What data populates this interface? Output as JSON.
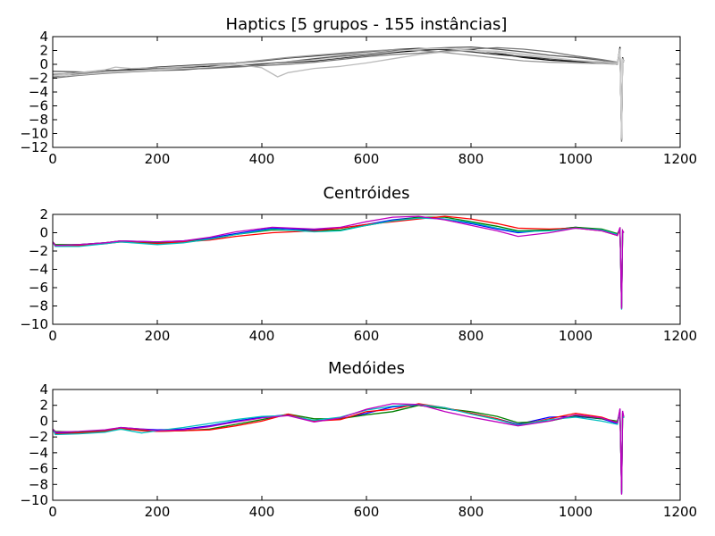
{
  "chart_data": [
    {
      "type": "line",
      "title": "Haptics [5 grupos - 155 instâncias]",
      "xlabel": "",
      "ylabel": "",
      "xlim": [
        0,
        1200
      ],
      "ylim": [
        -12,
        4
      ],
      "xticks": [
        0,
        200,
        400,
        600,
        800,
        1000,
        1200
      ],
      "yticks": [
        4,
        2,
        0,
        -2,
        -4,
        -6,
        -8,
        -10,
        -12
      ],
      "grid": false,
      "series_style": "many overlapping time series in black and shades of grey",
      "colors": [
        "#000000",
        "#333333",
        "#555555",
        "#777777",
        "#999999",
        "#bbbbbb",
        "#cccccc"
      ],
      "series": [
        {
          "x": [
            0,
            50,
            100,
            150,
            200,
            250,
            300,
            350,
            400,
            450,
            500,
            550,
            600,
            650,
            700,
            750,
            800,
            850,
            900,
            950,
            1000,
            1050,
            1080,
            1085,
            1088,
            1090,
            1092
          ],
          "values": [
            -1.5,
            -1.2,
            -0.9,
            -0.8,
            -0.6,
            -0.5,
            -0.3,
            -0.2,
            0.1,
            0.3,
            0.5,
            0.9,
            1.3,
            1.7,
            2.0,
            2.2,
            2.1,
            1.6,
            1.0,
            0.6,
            0.4,
            0.2,
            0.0,
            2.5,
            -11.0,
            1.0,
            0.5
          ]
        },
        {
          "x": [
            0,
            50,
            100,
            150,
            200,
            250,
            300,
            350,
            400,
            450,
            500,
            550,
            600,
            650,
            700,
            750,
            800,
            850,
            900,
            950,
            1000,
            1050,
            1080,
            1085,
            1088,
            1090,
            1092
          ],
          "values": [
            -1.8,
            -1.4,
            -1.0,
            -0.7,
            -0.4,
            -0.2,
            0.0,
            0.2,
            0.5,
            0.9,
            1.2,
            1.5,
            1.8,
            2.1,
            2.3,
            2.1,
            1.8,
            1.4,
            1.1,
            0.8,
            0.5,
            0.3,
            0.1,
            2.0,
            -10.5,
            0.8,
            0.4
          ]
        },
        {
          "x": [
            0,
            50,
            100,
            150,
            200,
            250,
            300,
            350,
            400,
            450,
            500,
            550,
            600,
            650,
            700,
            750,
            800,
            850,
            900,
            950,
            1000,
            1050,
            1080,
            1085,
            1088,
            1090,
            1092
          ],
          "values": [
            -1.0,
            -1.1,
            -1.2,
            -1.0,
            -0.9,
            -0.8,
            -0.5,
            -0.3,
            0.0,
            0.4,
            0.8,
            1.2,
            1.5,
            1.9,
            2.2,
            2.4,
            2.5,
            2.2,
            1.8,
            1.3,
            1.0,
            0.6,
            0.2,
            1.8,
            -10.8,
            0.6,
            0.3
          ]
        },
        {
          "x": [
            0,
            50,
            100,
            150,
            200,
            250,
            300,
            350,
            400,
            450,
            500,
            550,
            600,
            650,
            700,
            750,
            800,
            850,
            900,
            950,
            1000,
            1050,
            1080,
            1085,
            1088,
            1090,
            1092
          ],
          "values": [
            -2.0,
            -1.6,
            -1.3,
            -1.1,
            -0.9,
            -0.7,
            -0.6,
            -0.4,
            -0.2,
            0.0,
            0.3,
            0.7,
            1.1,
            1.4,
            1.6,
            1.9,
            2.2,
            2.4,
            2.2,
            1.8,
            1.2,
            0.7,
            0.3,
            2.2,
            -11.2,
            0.9,
            0.5
          ]
        },
        {
          "x": [
            0,
            50,
            100,
            150,
            200,
            250,
            300,
            350,
            400,
            450,
            500,
            550,
            600,
            650,
            700,
            750,
            800,
            850,
            900,
            950,
            1000,
            1050,
            1080,
            1085,
            1088,
            1090,
            1092
          ],
          "values": [
            -1.4,
            -1.3,
            -1.0,
            -0.9,
            -0.7,
            -0.4,
            -0.1,
            0.2,
            0.6,
            1.0,
            1.3,
            1.6,
            1.9,
            2.1,
            2.0,
            1.7,
            1.3,
            0.9,
            0.5,
            0.3,
            0.2,
            0.1,
            0.0,
            1.5,
            -10.2,
            0.7,
            0.3
          ]
        },
        {
          "x": [
            0,
            50,
            100,
            120,
            150,
            200,
            250,
            300,
            350,
            400,
            430,
            450,
            500,
            550,
            600,
            650,
            700,
            750,
            800,
            850,
            900,
            950,
            1000,
            1050,
            1080,
            1085,
            1088,
            1090,
            1092
          ],
          "values": [
            -1.6,
            -1.2,
            -0.8,
            -0.4,
            -0.6,
            -0.5,
            -0.3,
            -0.1,
            0.0,
            -0.5,
            -1.8,
            -1.2,
            -0.6,
            -0.3,
            0.2,
            0.8,
            1.4,
            1.8,
            2.0,
            1.9,
            1.5,
            1.0,
            0.6,
            0.2,
            0.0,
            2.3,
            -10.9,
            0.8,
            0.4
          ]
        },
        {
          "x": [
            0,
            50,
            100,
            150,
            200,
            250,
            300,
            350,
            400,
            450,
            500,
            550,
            600,
            650,
            700,
            750,
            800,
            850,
            900,
            950,
            1000,
            1050,
            1080,
            1085,
            1088,
            1090,
            1092
          ],
          "values": [
            -1.7,
            -1.5,
            -1.2,
            -1.0,
            -0.8,
            -0.6,
            -0.4,
            -0.1,
            0.2,
            0.4,
            0.6,
            1.0,
            1.4,
            1.8,
            2.2,
            2.3,
            2.0,
            1.7,
            1.3,
            0.9,
            0.6,
            0.4,
            0.2,
            2.0,
            -10.6,
            0.8,
            0.4
          ]
        }
      ]
    },
    {
      "type": "line",
      "title": "Centróides",
      "xlabel": "",
      "ylabel": "",
      "xlim": [
        0,
        1200
      ],
      "ylim": [
        -10,
        2
      ],
      "xticks": [
        0,
        200,
        400,
        600,
        800,
        1000,
        1200
      ],
      "yticks": [
        2,
        0,
        -2,
        -4,
        -6,
        -8,
        -10
      ],
      "grid": false,
      "series": [
        {
          "color": "#0000ff",
          "x": [
            0,
            5,
            50,
            100,
            130,
            200,
            250,
            300,
            350,
            420,
            500,
            550,
            600,
            650,
            700,
            750,
            800,
            850,
            890,
            950,
            1000,
            1050,
            1080,
            1085,
            1088,
            1090,
            1092
          ],
          "values": [
            -1.0,
            -1.4,
            -1.3,
            -1.1,
            -0.9,
            -1.0,
            -0.9,
            -0.6,
            -0.1,
            0.5,
            0.3,
            0.5,
            0.9,
            1.4,
            1.7,
            1.5,
            1.0,
            0.4,
            0.0,
            0.3,
            0.6,
            0.3,
            -0.3,
            0.5,
            -8.2,
            0.2,
            0.0
          ]
        },
        {
          "color": "#008000",
          "x": [
            0,
            5,
            50,
            100,
            130,
            200,
            250,
            300,
            350,
            420,
            500,
            550,
            600,
            650,
            700,
            750,
            800,
            850,
            890,
            950,
            1000,
            1050,
            1080,
            1085,
            1088,
            1090,
            1092
          ],
          "values": [
            -1.0,
            -1.3,
            -1.3,
            -1.1,
            -0.9,
            -1.1,
            -1.0,
            -0.7,
            -0.2,
            0.3,
            0.2,
            0.3,
            0.8,
            1.3,
            1.7,
            1.7,
            1.2,
            0.7,
            0.2,
            0.3,
            0.6,
            0.4,
            -0.1,
            0.4,
            -8.3,
            0.1,
            0.0
          ]
        },
        {
          "color": "#ff0000",
          "x": [
            0,
            5,
            50,
            100,
            130,
            200,
            250,
            300,
            350,
            420,
            500,
            550,
            600,
            650,
            700,
            750,
            800,
            850,
            890,
            950,
            1000,
            1050,
            1080,
            1085,
            1088,
            1090,
            1092
          ],
          "values": [
            -1.0,
            -1.4,
            -1.4,
            -1.2,
            -1.0,
            -1.2,
            -1.0,
            -0.8,
            -0.4,
            0.0,
            0.2,
            0.5,
            0.9,
            1.2,
            1.5,
            1.8,
            1.5,
            1.0,
            0.5,
            0.4,
            0.5,
            0.2,
            -0.3,
            0.3,
            -8.1,
            0.2,
            0.0
          ]
        },
        {
          "color": "#00bfbf",
          "x": [
            0,
            5,
            50,
            100,
            130,
            200,
            250,
            300,
            350,
            420,
            500,
            550,
            600,
            650,
            700,
            750,
            800,
            850,
            890,
            950,
            1000,
            1050,
            1080,
            1085,
            1088,
            1090,
            1092
          ],
          "values": [
            -1.0,
            -1.5,
            -1.5,
            -1.2,
            -1.0,
            -1.3,
            -1.1,
            -0.7,
            -0.2,
            0.4,
            0.1,
            0.2,
            0.8,
            1.3,
            1.6,
            1.5,
            1.1,
            0.5,
            0.1,
            0.2,
            0.5,
            0.3,
            -0.2,
            0.4,
            -8.4,
            0.1,
            0.0
          ]
        },
        {
          "color": "#bf00bf",
          "x": [
            0,
            5,
            50,
            100,
            130,
            200,
            250,
            300,
            350,
            420,
            500,
            550,
            600,
            650,
            700,
            750,
            800,
            850,
            890,
            950,
            1000,
            1050,
            1080,
            1085,
            1088,
            1090,
            1092
          ],
          "values": [
            -1.0,
            -1.4,
            -1.3,
            -1.1,
            -0.9,
            -1.0,
            -0.9,
            -0.5,
            0.1,
            0.6,
            0.4,
            0.6,
            1.2,
            1.7,
            1.8,
            1.4,
            0.8,
            0.2,
            -0.4,
            0.0,
            0.5,
            0.2,
            -0.3,
            0.6,
            -8.3,
            0.2,
            0.0
          ]
        }
      ]
    },
    {
      "type": "line",
      "title": "Medóides",
      "xlabel": "",
      "ylabel": "",
      "xlim": [
        0,
        1200
      ],
      "ylim": [
        -10,
        4
      ],
      "xticks": [
        0,
        200,
        400,
        600,
        800,
        1000,
        1200
      ],
      "yticks": [
        4,
        2,
        0,
        -2,
        -4,
        -6,
        -8,
        -10
      ],
      "grid": false,
      "series": [
        {
          "color": "#0000ff",
          "x": [
            0,
            5,
            50,
            100,
            130,
            170,
            200,
            250,
            300,
            350,
            400,
            450,
            500,
            550,
            600,
            650,
            700,
            750,
            800,
            850,
            890,
            950,
            1000,
            1050,
            1080,
            1085,
            1088,
            1090,
            1092
          ],
          "values": [
            -1.0,
            -1.5,
            -1.4,
            -1.2,
            -0.8,
            -1.0,
            -1.1,
            -1.0,
            -0.6,
            0.0,
            0.5,
            0.8,
            0.0,
            0.3,
            1.0,
            1.8,
            2.0,
            1.6,
            1.0,
            0.3,
            -0.4,
            0.5,
            0.6,
            0.3,
            -0.3,
            1.5,
            -9.2,
            1.2,
            0.5
          ]
        },
        {
          "color": "#008000",
          "x": [
            0,
            5,
            50,
            100,
            130,
            170,
            200,
            250,
            300,
            350,
            400,
            450,
            500,
            550,
            600,
            650,
            700,
            750,
            800,
            850,
            890,
            950,
            1000,
            1050,
            1080,
            1085,
            1088,
            1090,
            1092
          ],
          "values": [
            -1.0,
            -1.3,
            -1.4,
            -1.2,
            -1.0,
            -1.1,
            -1.3,
            -1.2,
            -1.0,
            -0.4,
            0.2,
            0.9,
            0.3,
            0.3,
            0.8,
            1.2,
            2.0,
            1.6,
            1.2,
            0.6,
            -0.2,
            0.0,
            0.7,
            0.3,
            0.0,
            1.2,
            -9.0,
            1.0,
            0.4
          ]
        },
        {
          "color": "#ff0000",
          "x": [
            0,
            5,
            50,
            100,
            130,
            170,
            200,
            250,
            300,
            350,
            400,
            450,
            500,
            550,
            600,
            650,
            700,
            750,
            800,
            850,
            890,
            950,
            1000,
            1050,
            1080,
            1085,
            1088,
            1090,
            1092
          ],
          "values": [
            -1.0,
            -1.6,
            -1.5,
            -1.3,
            -0.9,
            -1.2,
            -1.3,
            -1.2,
            -1.1,
            -0.6,
            0.0,
            0.9,
            0.0,
            0.2,
            1.2,
            1.5,
            2.2,
            1.7,
            1.0,
            0.3,
            -0.5,
            0.3,
            1.0,
            0.5,
            -0.2,
            1.0,
            -8.8,
            1.1,
            0.5
          ]
        },
        {
          "color": "#00bfbf",
          "x": [
            0,
            5,
            50,
            100,
            130,
            170,
            200,
            250,
            300,
            350,
            400,
            450,
            500,
            550,
            600,
            650,
            700,
            750,
            800,
            850,
            890,
            950,
            1000,
            1050,
            1080,
            1085,
            1088,
            1090,
            1092
          ],
          "values": [
            -1.0,
            -1.7,
            -1.6,
            -1.4,
            -1.0,
            -1.5,
            -1.2,
            -0.8,
            -0.3,
            0.2,
            0.6,
            0.7,
            0.1,
            0.5,
            1.4,
            1.9,
            2.1,
            1.7,
            0.9,
            0.2,
            -0.5,
            0.2,
            0.5,
            0.0,
            -0.4,
            1.3,
            -9.1,
            1.0,
            0.4
          ]
        },
        {
          "color": "#bf00bf",
          "x": [
            0,
            5,
            50,
            100,
            130,
            170,
            200,
            250,
            300,
            350,
            400,
            450,
            500,
            550,
            600,
            650,
            700,
            750,
            800,
            850,
            890,
            950,
            1000,
            1050,
            1080,
            1085,
            1088,
            1090,
            1092
          ],
          "values": [
            -1.0,
            -1.4,
            -1.3,
            -1.1,
            -0.8,
            -1.0,
            -1.2,
            -1.1,
            -0.7,
            -0.1,
            0.4,
            0.7,
            -0.1,
            0.4,
            1.5,
            2.2,
            2.1,
            1.2,
            0.5,
            -0.1,
            -0.6,
            0.0,
            0.8,
            0.4,
            -0.2,
            1.6,
            -9.3,
            1.3,
            0.6
          ]
        }
      ]
    }
  ]
}
